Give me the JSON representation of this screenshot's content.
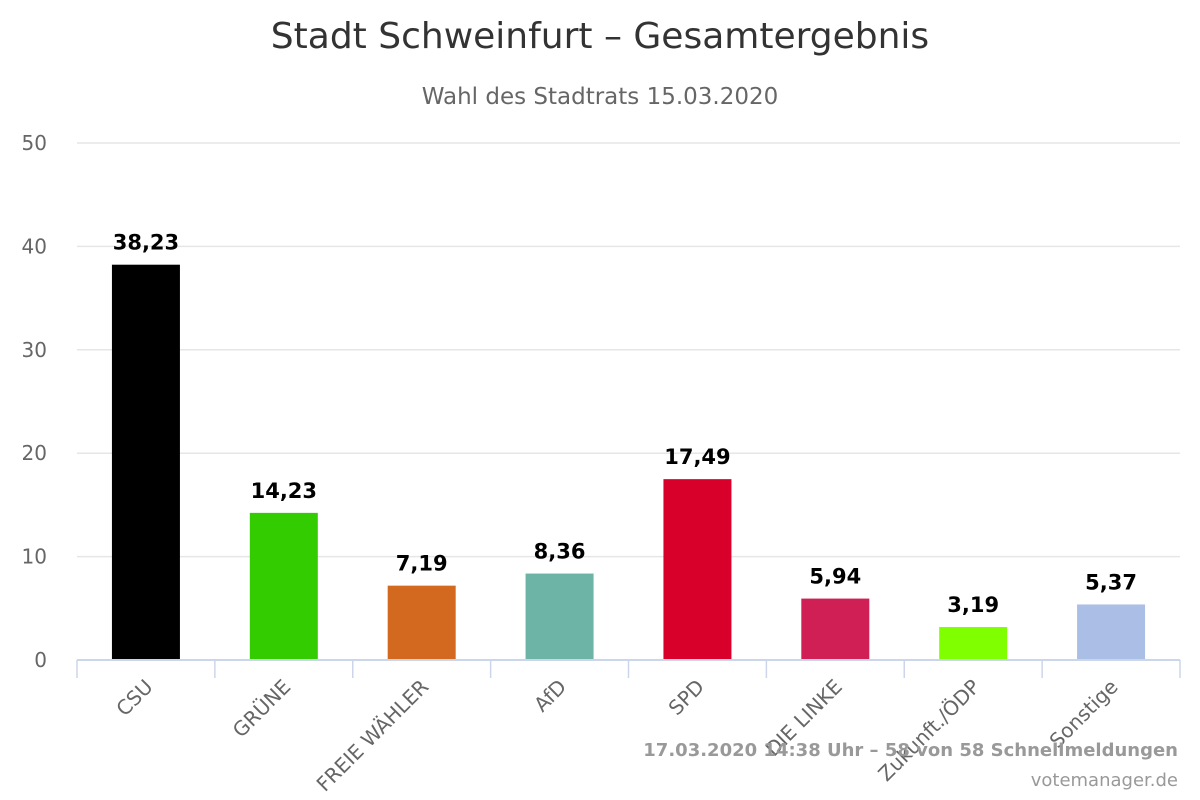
{
  "chart_data": {
    "type": "bar",
    "title": "Stadt Schweinfurt – Gesamtergebnis",
    "subtitle": "Wahl des Stadtrats 15.03.2020",
    "categories": [
      "CSU",
      "GRÜNE",
      "FREIE WÄHLER",
      "AfD",
      "SPD",
      "DIE LINKE",
      "Zukunft./ÖDP",
      "Sonstige"
    ],
    "values": [
      38.23,
      14.23,
      7.19,
      8.36,
      17.49,
      5.94,
      3.19,
      5.37
    ],
    "value_labels": [
      "38,23",
      "14,23",
      "7,19",
      "8,36",
      "17,49",
      "5,94",
      "3,19",
      "5,37"
    ],
    "colors": [
      "#000000",
      "#33cc00",
      "#d2691e",
      "#6db3a6",
      "#d8002b",
      "#cf1f55",
      "#80ff00",
      "#abbee6"
    ],
    "ylim": [
      0,
      50
    ],
    "yticks": [
      0,
      10,
      20,
      30,
      40,
      50
    ],
    "xlabel": "",
    "ylabel": "",
    "grid": true,
    "legend": "none"
  },
  "credits": {
    "status": "17.03.2020 14:38 Uhr – 58 von 58 Schnellmeldungen",
    "site": "votemanager.de"
  }
}
